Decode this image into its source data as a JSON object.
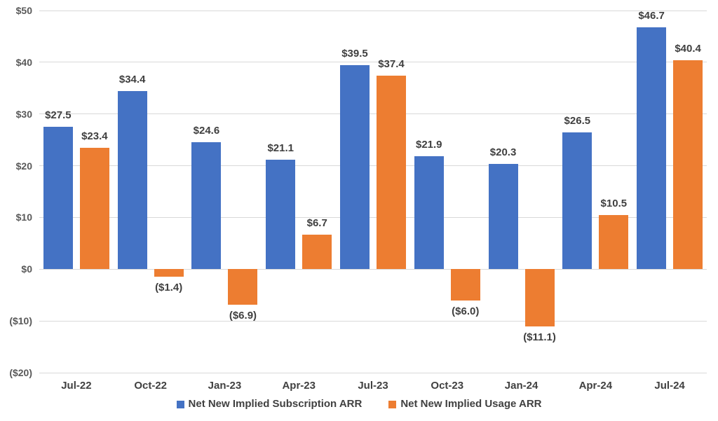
{
  "chart_data": {
    "type": "bar",
    "title": "",
    "xlabel": "",
    "ylabel": "",
    "categories": [
      "Jul-22",
      "Oct-22",
      "Jan-23",
      "Apr-23",
      "Jul-23",
      "Oct-23",
      "Jan-24",
      "Apr-24",
      "Jul-24"
    ],
    "series": [
      {
        "name": "Net New Implied Subscription ARR",
        "color": "#4472C4",
        "values": [
          27.5,
          34.4,
          24.6,
          21.1,
          39.5,
          21.9,
          20.3,
          26.5,
          46.7
        ],
        "labels": [
          "$27.5",
          "$34.4",
          "$24.6",
          "$21.1",
          "$39.5",
          "$21.9",
          "$20.3",
          "$26.5",
          "$46.7"
        ]
      },
      {
        "name": "Net New Implied Usage ARR",
        "color": "#ED7D31",
        "values": [
          23.4,
          -1.4,
          -6.9,
          6.7,
          37.4,
          -6.0,
          -11.1,
          10.5,
          40.4
        ],
        "labels": [
          "$23.4",
          "($1.4)",
          "($6.9)",
          "$6.7",
          "$37.4",
          "($6.0)",
          "($11.1)",
          "$10.5",
          "$40.4"
        ]
      }
    ],
    "y_axis": {
      "min": -20,
      "max": 50,
      "tick_step": 10,
      "ticks": [
        {
          "value": 50,
          "label": "$50"
        },
        {
          "value": 40,
          "label": "$40"
        },
        {
          "value": 30,
          "label": "$30"
        },
        {
          "value": 20,
          "label": "$20"
        },
        {
          "value": 10,
          "label": "$10"
        },
        {
          "value": 0,
          "label": "$0"
        },
        {
          "value": -10,
          "label": "($10)"
        },
        {
          "value": -20,
          "label": "($20)"
        }
      ]
    },
    "grid": true,
    "legend_position": "bottom",
    "colors": {
      "grid": "#D9D9D9",
      "axis_text": "#595959",
      "label_text": "#3F3F3F",
      "background": "#FFFFFF"
    }
  }
}
